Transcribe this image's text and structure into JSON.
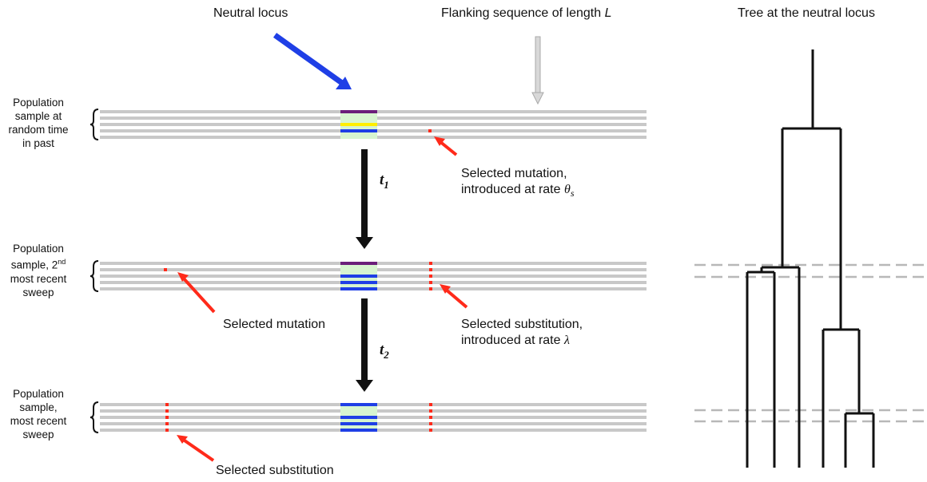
{
  "headers": {
    "neutral_locus": "Neutral locus",
    "flanking_prefix": "Flanking sequence of length ",
    "flanking_var": "L",
    "tree_title": "Tree at the neutral locus"
  },
  "populations": {
    "past_lines": [
      "Population",
      "sample at",
      "random time",
      "in past"
    ],
    "second_line1": "Population",
    "second_line2_prefix": "sample, 2",
    "second_line2_sup": "nd",
    "second_line3": "most recent",
    "second_line4": "sweep",
    "recent_lines": [
      "Population",
      "sample,",
      "most recent",
      "sweep"
    ]
  },
  "annotations": {
    "selected_mutation_rate_line1": "Selected mutation,",
    "selected_mutation_rate_line2_prefix": "introduced at rate ",
    "theta": "θ",
    "theta_sub": "s",
    "selected_mutation": "Selected mutation",
    "selected_substitution_line1": "Selected substitution,",
    "selected_substitution_line2_prefix": "introduced at rate ",
    "lambda": "λ",
    "selected_substitution": "Selected substitution"
  },
  "times": {
    "t1": "t",
    "t1_sub": "1",
    "t2": "t",
    "t2_sub": "2"
  },
  "colors": {
    "sequence_gray": "#c8c8c8",
    "purple": "#6b1f7a",
    "light_green": "#d7f5d0",
    "yellow": "#ffee00",
    "blue": "#1f3fe6",
    "red": "#ff2a1a",
    "arrow_blue": "#1f3fe6",
    "arrow_gray": "#d0d0d0",
    "dashed_gray": "#b8b8b8"
  }
}
